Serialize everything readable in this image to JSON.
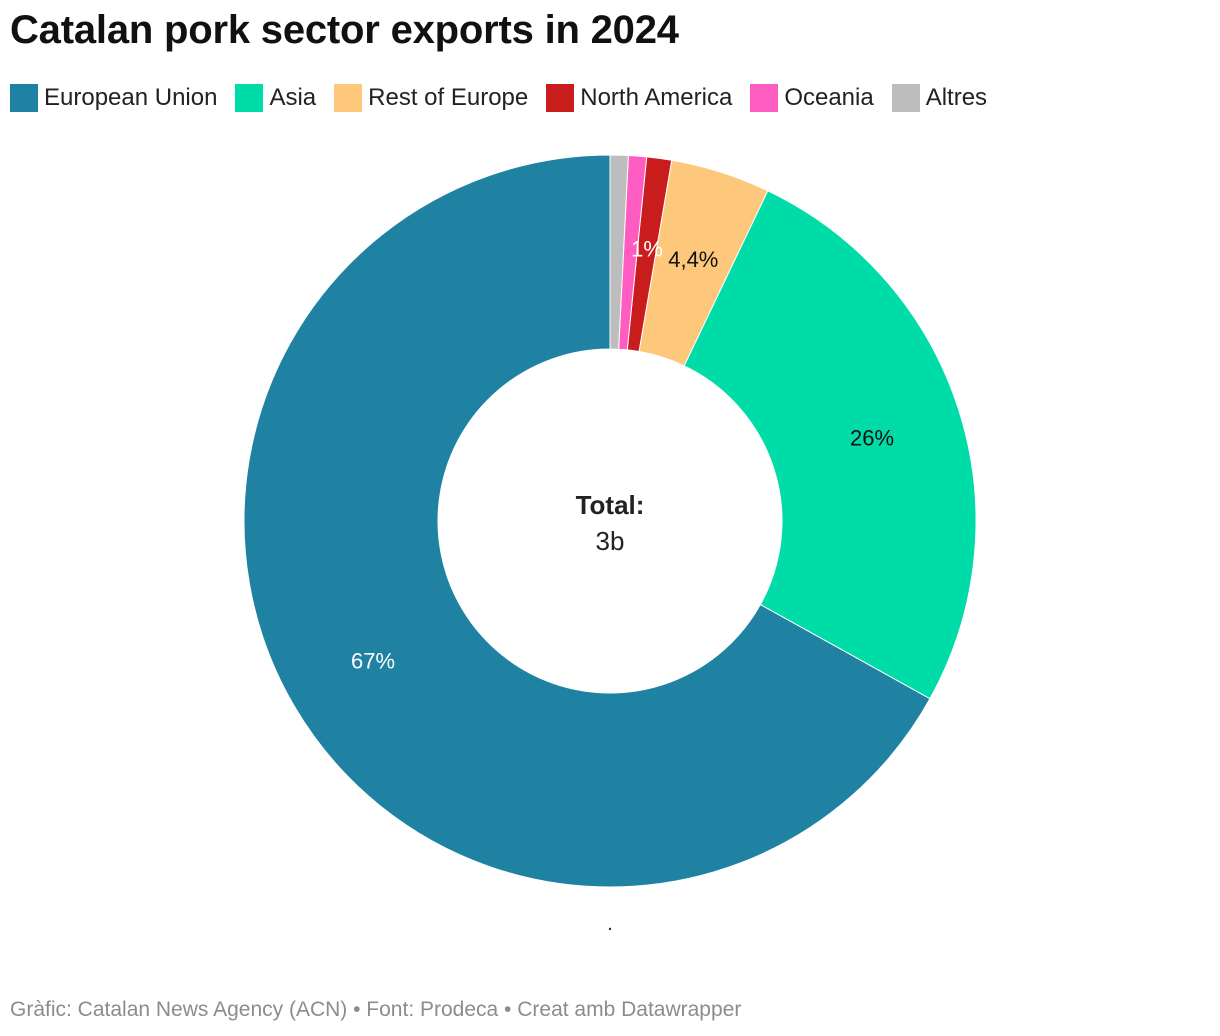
{
  "chart_data": {
    "type": "pie",
    "title": "Catalan pork sector exports in 2024",
    "categories": [
      "European Union",
      "Asia",
      "Rest of Europe",
      "North America",
      "Oceania",
      "Altres"
    ],
    "values": [
      67,
      26,
      4.4,
      1.1,
      0.8,
      0.8
    ],
    "data_labels": [
      "67%",
      "26%",
      "4,4%",
      "1%",
      "",
      ""
    ],
    "colors": [
      "#1f82a2",
      "#00dca7",
      "#fdc87b",
      "#c91d1d",
      "#ff5cc2",
      "#bdbdbd"
    ],
    "donut": true,
    "center_label": {
      "title": "Total:",
      "value": "3b"
    },
    "legend_position": "top-left",
    "note": "."
  },
  "footer": {
    "text": "Gràfic: Catalan News Agency (ACN) • Font: Prodeca • Creat amb Datawrapper"
  }
}
